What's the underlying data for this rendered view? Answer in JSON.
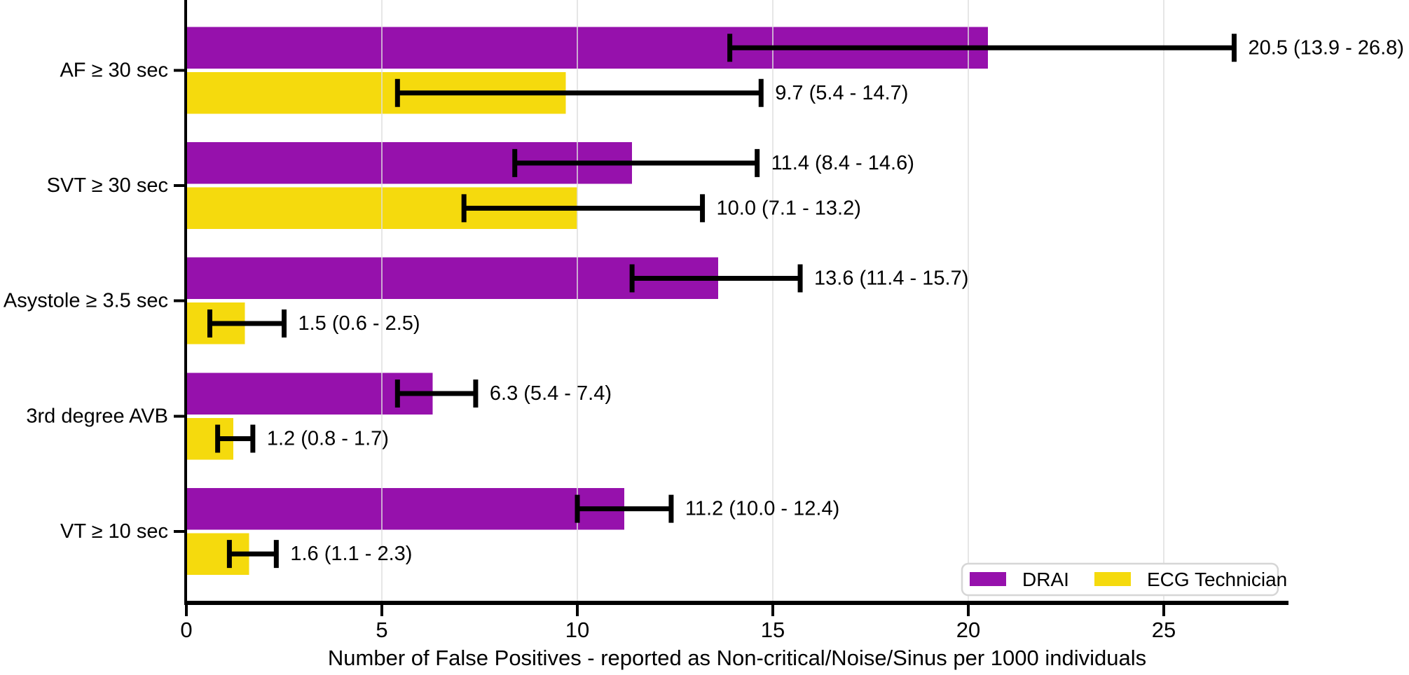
{
  "chart_data": {
    "type": "bar",
    "orientation": "horizontal",
    "title": "",
    "categories": [
      "AF ≥ 30 sec",
      "SVT ≥ 30 sec",
      "Asystole ≥ 3.5 sec",
      "3rd degree AVB",
      "VT ≥ 10 sec"
    ],
    "series": [
      {
        "name": "DRAI",
        "color": "#9611AC",
        "values": [
          20.5,
          11.4,
          13.6,
          6.3,
          11.2
        ],
        "ci_low": [
          13.9,
          8.4,
          11.4,
          5.4,
          10.0
        ],
        "ci_high": [
          26.8,
          14.6,
          15.7,
          7.4,
          12.4
        ],
        "labels": [
          "20.5 (13.9 - 26.8)",
          "11.4 (8.4 - 14.6)",
          "13.6 (11.4 - 15.7)",
          "6.3 (5.4 - 7.4)",
          "11.2 (10.0 - 12.4)"
        ]
      },
      {
        "name": "ECG Technician",
        "color": "#F5DA0D",
        "values": [
          9.7,
          10.0,
          1.5,
          1.2,
          1.6
        ],
        "ci_low": [
          5.4,
          7.1,
          0.6,
          0.8,
          1.1
        ],
        "ci_high": [
          14.7,
          13.2,
          2.5,
          1.7,
          2.3
        ],
        "labels": [
          "9.7 (5.4 - 14.7)",
          "10.0 (7.1 - 13.2)",
          "1.5 (0.6 - 2.5)",
          "1.2 (0.8 - 1.7)",
          "1.6 (1.1 - 2.3)"
        ]
      }
    ],
    "xlabel": "Number of False Positives - reported as Non-critical/Noise/Sinus per 1000 individuals",
    "ylabel": "",
    "x_ticks": [
      0,
      5,
      10,
      15,
      20,
      25
    ],
    "x_tick_labels": [
      "0",
      "5",
      "10",
      "15",
      "20",
      "25"
    ],
    "xlim": [
      0,
      28.2
    ],
    "grid": "vertical-at-ticks",
    "error_bars": "95% CI, black, capped both ends",
    "legend_position": "bottom-right-inside",
    "colors": {
      "grid": "#DDDDDD",
      "axis": "#000000",
      "error_bar": "#000000",
      "value_label": "#000000",
      "legend_border": "#D6D6D6",
      "legend_background": "#FFFFFF"
    }
  }
}
